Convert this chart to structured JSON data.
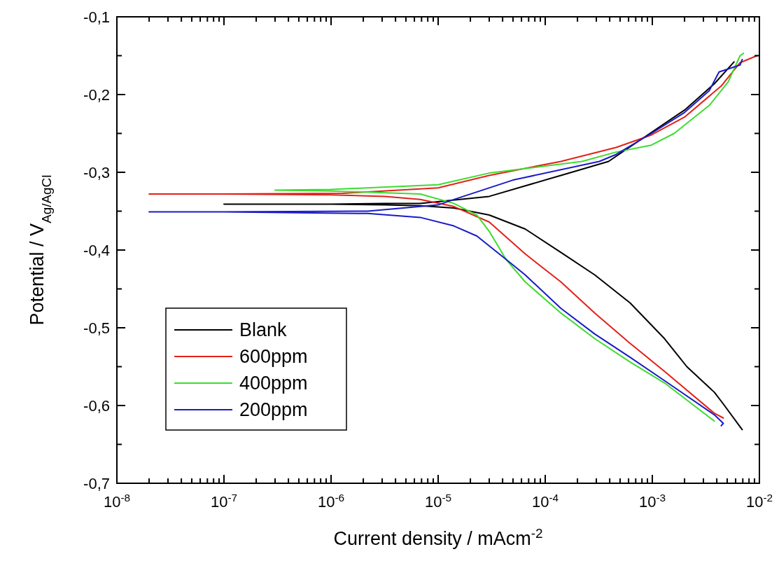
{
  "chart_data": {
    "type": "line",
    "xlabel": "Current density / mAcm$^{-2}$",
    "ylabel": "Potential / V$_{Ag/AgCl}$",
    "log": "x",
    "legend": "bottom left",
    "grid": false,
    "marker": "none",
    "line_style": "solid",
    "xlim": [
      1e-08,
      0.01
    ],
    "ylim": [
      -0.7,
      -0.1
    ],
    "xticks": [
      {
        "value": 1e-08,
        "label": "10$^{-8}$"
      },
      {
        "value": 1e-07,
        "label": "10$^{-7}$"
      },
      {
        "value": 1e-06,
        "label": "10$^{-6}$"
      },
      {
        "value": 1e-05,
        "label": "10$^{-5}$"
      },
      {
        "value": 0.0001,
        "label": "10$^{-4}$"
      },
      {
        "value": 0.001,
        "label": "10$^{-3}$"
      },
      {
        "value": 0.01,
        "label": "10$^{-2}$"
      },
      {
        "value": 2e-08,
        "label": null
      },
      {
        "value": 3e-08,
        "label": null
      },
      {
        "value": 4e-08,
        "label": null
      },
      {
        "value": 5e-08,
        "label": null
      },
      {
        "value": 6e-08,
        "label": null
      },
      {
        "value": 7e-08,
        "label": null
      },
      {
        "value": 8e-08,
        "label": null
      },
      {
        "value": 9e-08,
        "label": null
      },
      {
        "value": 2e-07,
        "label": null
      },
      {
        "value": 3e-07,
        "label": null
      },
      {
        "value": 4e-07,
        "label": null
      },
      {
        "value": 5e-07,
        "label": null
      },
      {
        "value": 6e-07,
        "label": null
      },
      {
        "value": 7e-07,
        "label": null
      },
      {
        "value": 8e-07,
        "label": null
      },
      {
        "value": 9e-07,
        "label": null
      },
      {
        "value": 2e-06,
        "label": null
      },
      {
        "value": 3e-06,
        "label": null
      },
      {
        "value": 4e-06,
        "label": null
      },
      {
        "value": 5e-06,
        "label": null
      },
      {
        "value": 6e-06,
        "label": null
      },
      {
        "value": 7e-06,
        "label": null
      },
      {
        "value": 8e-06,
        "label": null
      },
      {
        "value": 9e-06,
        "label": null
      },
      {
        "value": 2e-05,
        "label": null
      },
      {
        "value": 3e-05,
        "label": null
      },
      {
        "value": 4e-05,
        "label": null
      },
      {
        "value": 5e-05,
        "label": null
      },
      {
        "value": 6e-05,
        "label": null
      },
      {
        "value": 7e-05,
        "label": null
      },
      {
        "value": 8e-05,
        "label": null
      },
      {
        "value": 9e-05,
        "label": null
      },
      {
        "value": 0.0002,
        "label": null
      },
      {
        "value": 0.0003,
        "label": null
      },
      {
        "value": 0.0004,
        "label": null
      },
      {
        "value": 0.0005,
        "label": null
      },
      {
        "value": 0.0006,
        "label": null
      },
      {
        "value": 0.0007,
        "label": null
      },
      {
        "value": 0.0008,
        "label": null
      },
      {
        "value": 0.0009,
        "label": null
      },
      {
        "value": 0.002,
        "label": null
      },
      {
        "value": 0.003,
        "label": null
      },
      {
        "value": 0.004,
        "label": null
      },
      {
        "value": 0.005,
        "label": null
      },
      {
        "value": 0.006,
        "label": null
      },
      {
        "value": 0.007,
        "label": null
      },
      {
        "value": 0.008,
        "label": null
      },
      {
        "value": 0.009,
        "label": null
      }
    ],
    "yticks": [
      {
        "value": -0.7,
        "label": "-0,7"
      },
      {
        "value": -0.6,
        "label": "-0,6"
      },
      {
        "value": -0.5,
        "label": "-0,5"
      },
      {
        "value": -0.4,
        "label": "-0,4"
      },
      {
        "value": -0.3,
        "label": "-0,3"
      },
      {
        "value": -0.2,
        "label": "-0,2"
      },
      {
        "value": -0.1,
        "label": "-0,1"
      },
      {
        "value": -0.65,
        "label": null
      },
      {
        "value": -0.55,
        "label": null
      },
      {
        "value": -0.45,
        "label": null
      },
      {
        "value": -0.35,
        "label": null
      },
      {
        "value": -0.25,
        "label": null
      },
      {
        "value": -0.15,
        "label": null
      }
    ],
    "series": [
      {
        "name": "Blank",
        "color": "#000000",
        "x": [
          0.0069,
          0.0046,
          0.0038,
          0.0021,
          0.0013,
          0.00062,
          0.00029,
          0.00014,
          6.5e-05,
          3e-05,
          1.4e-05,
          6.8e-06,
          3.2e-06,
          1e-06,
          1e-07,
          1e-06,
          3.2e-06,
          6.8e-06,
          3e-05,
          0.00014,
          0.00039,
          0.00076,
          0.002,
          0.0038,
          0.0058
        ],
        "values": [
          -0.631,
          -0.598,
          -0.583,
          -0.55,
          -0.514,
          -0.468,
          -0.432,
          -0.403,
          -0.373,
          -0.355,
          -0.346,
          -0.343,
          -0.342,
          -0.341,
          -0.341,
          -0.341,
          -0.34,
          -0.34,
          -0.331,
          -0.304,
          -0.286,
          -0.259,
          -0.22,
          -0.186,
          -0.158
        ]
      },
      {
        "name": "600ppm",
        "color": "#e32119",
        "x": [
          0.0046,
          0.0038,
          0.0013,
          0.00062,
          0.00029,
          0.00014,
          6.5e-05,
          3e-05,
          1.4e-05,
          6.8e-06,
          3.2e-06,
          1e-06,
          1e-07,
          2e-08,
          1e-07,
          1.3e-06,
          1e-05,
          3e-05,
          0.00014,
          0.00046,
          0.00098,
          0.002,
          0.0044,
          0.0066,
          0.0095
        ],
        "values": [
          -0.616,
          -0.61,
          -0.556,
          -0.52,
          -0.481,
          -0.441,
          -0.405,
          -0.364,
          -0.344,
          -0.335,
          -0.331,
          -0.329,
          -0.328,
          -0.328,
          -0.328,
          -0.327,
          -0.32,
          -0.304,
          -0.286,
          -0.268,
          -0.252,
          -0.229,
          -0.189,
          -0.159,
          -0.15
        ]
      },
      {
        "name": "400ppm",
        "color": "#3ddc2f",
        "x": [
          0.0038,
          0.0013,
          0.00062,
          0.00029,
          0.00014,
          6.5e-05,
          4.3e-05,
          3e-05,
          2.3e-05,
          1.4e-05,
          6.8e-06,
          1e-06,
          3e-07,
          1e-06,
          1e-05,
          3e-05,
          0.00022,
          0.00046,
          0.00098,
          0.0016,
          0.0034,
          0.0051,
          0.0066,
          0.0071
        ],
        "values": [
          -0.62,
          -0.571,
          -0.544,
          -0.514,
          -0.481,
          -0.441,
          -0.412,
          -0.376,
          -0.355,
          -0.34,
          -0.328,
          -0.324,
          -0.323,
          -0.322,
          -0.316,
          -0.301,
          -0.286,
          -0.274,
          -0.265,
          -0.25,
          -0.214,
          -0.184,
          -0.15,
          -0.147
        ]
      },
      {
        "name": "200ppm",
        "color": "#1a1ac8",
        "x": [
          0.0044,
          0.0046,
          0.0038,
          0.0013,
          0.00062,
          0.00029,
          0.00014,
          6.5e-05,
          4.3e-05,
          2.3e-05,
          1.4e-05,
          6.8e-06,
          2.2e-06,
          1e-07,
          2e-08,
          1e-07,
          2.2e-06,
          1e-05,
          1.4e-05,
          5e-05,
          0.00032,
          0.00046,
          0.00098,
          0.002,
          0.0034,
          0.0042,
          0.0054,
          0.0066,
          0.0069
        ],
        "values": [
          -0.626,
          -0.623,
          -0.612,
          -0.568,
          -0.538,
          -0.508,
          -0.475,
          -0.432,
          -0.412,
          -0.382,
          -0.369,
          -0.358,
          -0.353,
          -0.351,
          -0.351,
          -0.351,
          -0.35,
          -0.342,
          -0.335,
          -0.31,
          -0.286,
          -0.277,
          -0.25,
          -0.223,
          -0.195,
          -0.171,
          -0.166,
          -0.162,
          -0.155
        ]
      }
    ]
  }
}
